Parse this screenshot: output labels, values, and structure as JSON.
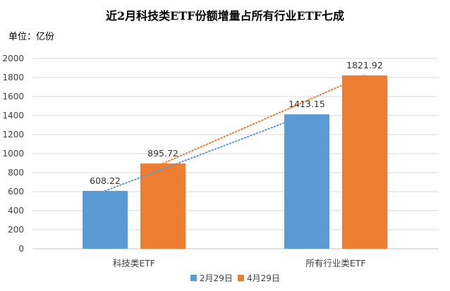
{
  "chart_data": {
    "type": "bar",
    "title": "近2月科技类ETF份额增量占所有行业ETF七成",
    "unit_label": "单位：亿份",
    "categories": [
      "科技类ETF",
      "所有行业类ETF"
    ],
    "series": [
      {
        "name": "2月29日",
        "values": [
          608.22,
          1413.15
        ],
        "color": "#5B9BD5"
      },
      {
        "name": "4月29日",
        "values": [
          895.72,
          1821.92
        ],
        "color": "#ED7D31"
      }
    ],
    "data_labels": [
      [
        "608.22",
        "1413.15"
      ],
      [
        "895.72",
        "1821.92"
      ]
    ],
    "yticks": [
      "0",
      "200",
      "400",
      "600",
      "800",
      "1000",
      "1200",
      "1400",
      "1600",
      "1800",
      "2000"
    ],
    "ylim": [
      0,
      2000
    ],
    "trendlines": "dotted, one per series, same color as series",
    "grid": "horizontal",
    "legend_position": "bottom"
  }
}
